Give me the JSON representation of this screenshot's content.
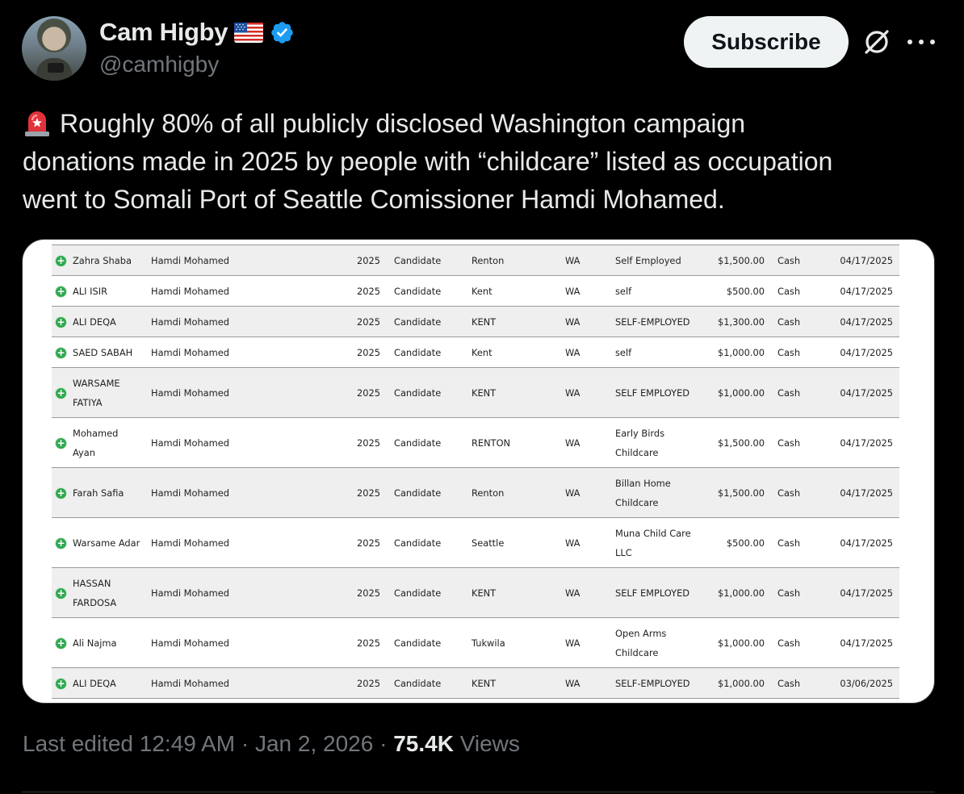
{
  "author": {
    "display_name": "Cam Higby",
    "handle": "@camhigby"
  },
  "actions": {
    "subscribe_label": "Subscribe"
  },
  "tweet": {
    "lines": [
      "Roughly 80% of all publicly disclosed Washington campaign",
      "donations made in 2025 by people with “childcare” listed as occupation",
      "went to Somali Port of Seattle Comissioner Hamdi Mohamed."
    ]
  },
  "table": {
    "rows": [
      {
        "name": [
          "Zahra Shaba"
        ],
        "candidate": "Hamdi Mohamed",
        "year": "2025",
        "type": "Candidate",
        "city": "Renton",
        "state": "WA",
        "occupation": [
          "Self Employed"
        ],
        "amount": "$1,500.00",
        "payment": "Cash",
        "date": "04/17/2025"
      },
      {
        "name": [
          "ALI ISIR"
        ],
        "candidate": "Hamdi Mohamed",
        "year": "2025",
        "type": "Candidate",
        "city": "Kent",
        "state": "WA",
        "occupation": [
          "self"
        ],
        "amount": "$500.00",
        "payment": "Cash",
        "date": "04/17/2025"
      },
      {
        "name": [
          "ALI DEQA"
        ],
        "candidate": "Hamdi Mohamed",
        "year": "2025",
        "type": "Candidate",
        "city": "KENT",
        "state": "WA",
        "occupation": [
          "SELF-EMPLOYED"
        ],
        "amount": "$1,300.00",
        "payment": "Cash",
        "date": "04/17/2025"
      },
      {
        "name": [
          "SAED SABAH"
        ],
        "candidate": "Hamdi Mohamed",
        "year": "2025",
        "type": "Candidate",
        "city": "Kent",
        "state": "WA",
        "occupation": [
          "self"
        ],
        "amount": "$1,000.00",
        "payment": "Cash",
        "date": "04/17/2025"
      },
      {
        "name": [
          "WARSAME",
          "FATIYA"
        ],
        "candidate": "Hamdi Mohamed",
        "year": "2025",
        "type": "Candidate",
        "city": "KENT",
        "state": "WA",
        "occupation": [
          "SELF EMPLOYED"
        ],
        "amount": "$1,000.00",
        "payment": "Cash",
        "date": "04/17/2025"
      },
      {
        "name": [
          "Mohamed",
          "Ayan"
        ],
        "candidate": "Hamdi Mohamed",
        "year": "2025",
        "type": "Candidate",
        "city": "RENTON",
        "state": "WA",
        "occupation": [
          "Early Birds",
          "Childcare"
        ],
        "amount": "$1,500.00",
        "payment": "Cash",
        "date": "04/17/2025"
      },
      {
        "name": [
          "Farah Safia"
        ],
        "candidate": "Hamdi Mohamed",
        "year": "2025",
        "type": "Candidate",
        "city": "Renton",
        "state": "WA",
        "occupation": [
          "Billan Home",
          "Childcare"
        ],
        "amount": "$1,500.00",
        "payment": "Cash",
        "date": "04/17/2025"
      },
      {
        "name": [
          "Warsame Adar"
        ],
        "candidate": "Hamdi Mohamed",
        "year": "2025",
        "type": "Candidate",
        "city": "Seattle",
        "state": "WA",
        "occupation": [
          "Muna Child Care",
          "LLC"
        ],
        "amount": "$500.00",
        "payment": "Cash",
        "date": "04/17/2025"
      },
      {
        "name": [
          "HASSAN",
          "FARDOSA"
        ],
        "candidate": "Hamdi Mohamed",
        "year": "2025",
        "type": "Candidate",
        "city": "KENT",
        "state": "WA",
        "occupation": [
          "SELF EMPLOYED"
        ],
        "amount": "$1,000.00",
        "payment": "Cash",
        "date": "04/17/2025"
      },
      {
        "name": [
          "Ali Najma"
        ],
        "candidate": "Hamdi Mohamed",
        "year": "2025",
        "type": "Candidate",
        "city": "Tukwila",
        "state": "WA",
        "occupation": [
          "Open Arms",
          "Childcare"
        ],
        "amount": "$1,000.00",
        "payment": "Cash",
        "date": "04/17/2025"
      },
      {
        "name": [
          "ALI DEQA"
        ],
        "candidate": "Hamdi Mohamed",
        "year": "2025",
        "type": "Candidate",
        "city": "KENT",
        "state": "WA",
        "occupation": [
          "SELF-EMPLOYED"
        ],
        "amount": "$1,000.00",
        "payment": "Cash",
        "date": "03/06/2025"
      }
    ]
  },
  "footer": {
    "edited_label": "Last edited",
    "time": "12:49 AM",
    "separator": "·",
    "date": "Jan 2, 2026",
    "views_count": "75.4K",
    "views_label": "Views"
  },
  "colors": {
    "background": "#000000",
    "text_primary": "#e7e9ea",
    "text_secondary": "#71767b",
    "verified_blue": "#1d9bf0",
    "expand_green": "#2fa84f"
  },
  "icons": {
    "flag": "us-flag-icon",
    "verified": "verified-badge-icon",
    "siren": "siren-emoji-icon",
    "grok": "grok-icon",
    "more": "more-dots-icon",
    "expand": "expand-plus-icon"
  }
}
